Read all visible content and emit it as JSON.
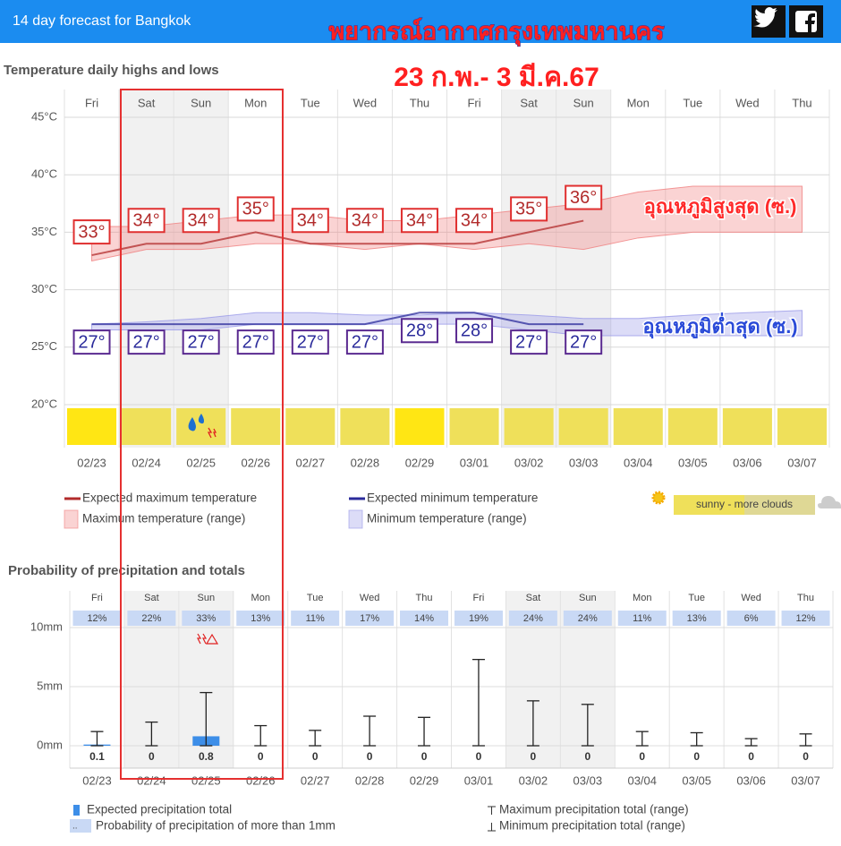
{
  "header": {
    "title": "14 day forecast for Bangkok"
  },
  "overlay": {
    "title": "พยากรณ์อากาศกรุงเทพมหานคร",
    "subtitle": "23 ก.พ.- 3 มี.ค.67",
    "max_label": "อุณหภูมิสูงสุด (ซ.)",
    "min_label": "อุณหภูมิต่ำสุด (ซ.)"
  },
  "chart_data": [
    {
      "type": "line",
      "title": "Temperature daily highs and lows",
      "categories": [
        "Fri",
        "Sat",
        "Sun",
        "Mon",
        "Tue",
        "Wed",
        "Thu",
        "Fri",
        "Sat",
        "Sun",
        "Mon",
        "Tue",
        "Wed",
        "Thu"
      ],
      "dates": [
        "02/23",
        "02/24",
        "02/25",
        "02/26",
        "02/27",
        "02/28",
        "02/29",
        "03/01",
        "03/02",
        "03/03",
        "03/04",
        "03/05",
        "03/06",
        "03/07"
      ],
      "ylim": [
        16,
        45
      ],
      "yticks": [
        {
          "value": 20,
          "label": "20°C"
        },
        {
          "value": 25,
          "label": "25°C"
        },
        {
          "value": 30,
          "label": "30°C"
        },
        {
          "value": 35,
          "label": "35°C"
        },
        {
          "value": 40,
          "label": "40°C"
        },
        {
          "value": 45,
          "label": "45°C"
        }
      ],
      "grid": true,
      "series": [
        {
          "name": "Expected maximum temperature",
          "color": "#b22b2b",
          "values": [
            33,
            34,
            34,
            35,
            34,
            34,
            34,
            34,
            35,
            36,
            null,
            null,
            null,
            null
          ],
          "value_labels": [
            "33°",
            "34°",
            "34°",
            "35°",
            "34°",
            "34°",
            "34°",
            "34°",
            "35°",
            "36°",
            null,
            null,
            null,
            null
          ]
        },
        {
          "name": "Expected minimum temperature",
          "color": "#2b2b9b",
          "values": [
            27,
            27,
            27,
            27,
            27,
            27,
            28,
            28,
            27,
            27,
            null,
            null,
            null,
            null
          ],
          "value_labels": [
            "27°",
            "27°",
            "27°",
            "27°",
            "27°",
            "27°",
            "28°",
            "28°",
            "27°",
            "27°",
            null,
            null,
            null,
            null
          ]
        },
        {
          "name": "Maximum temperature (range)",
          "color": "#f08080",
          "low": [
            32.5,
            33.5,
            33.5,
            34,
            34,
            33.5,
            34,
            33.5,
            34,
            33.5,
            34.5,
            35,
            35,
            35
          ],
          "high": [
            35.5,
            35.5,
            36,
            36.5,
            36.5,
            36,
            36,
            36.5,
            37,
            37.5,
            38.5,
            39,
            39,
            39
          ]
        },
        {
          "name": "Minimum temperature (range)",
          "color": "#9a9ae8",
          "low": [
            26.5,
            26.5,
            26.5,
            27,
            27,
            27,
            27,
            27,
            26.5,
            26,
            26,
            26,
            26,
            26
          ],
          "high": [
            27,
            27.2,
            27.5,
            28,
            28,
            27.8,
            27.8,
            28,
            27.8,
            27.5,
            27.5,
            27.8,
            28,
            28.2
          ]
        }
      ],
      "weather_legend": "sunny - more clouds"
    },
    {
      "type": "bar",
      "title": "Probability of precipitation and totals",
      "categories": [
        "Fri",
        "Sat",
        "Sun",
        "Mon",
        "Tue",
        "Wed",
        "Thu",
        "Fri",
        "Sat",
        "Sun",
        "Mon",
        "Tue",
        "Wed",
        "Thu"
      ],
      "dates": [
        "02/23",
        "02/24",
        "02/25",
        "02/26",
        "02/27",
        "02/28",
        "02/29",
        "03/01",
        "03/02",
        "03/03",
        "03/04",
        "03/05",
        "03/06",
        "03/07"
      ],
      "ylim": [
        0,
        10
      ],
      "yticks": [
        {
          "value": 0,
          "label": "0mm"
        },
        {
          "value": 5,
          "label": "5mm"
        },
        {
          "value": 10,
          "label": "10mm"
        }
      ],
      "probability": {
        "name": "Probability of precipitation of more than 1mm",
        "values": [
          12,
          22,
          33,
          13,
          11,
          17,
          14,
          19,
          24,
          24,
          11,
          13,
          6,
          12
        ],
        "value_labels": [
          "12%",
          "22%",
          "33%",
          "13%",
          "11%",
          "17%",
          "14%",
          "19%",
          "24%",
          "24%",
          "11%",
          "13%",
          "6%",
          "12%"
        ]
      },
      "series": [
        {
          "name": "Expected precipitation total",
          "color": "#3d8ee8",
          "values": [
            0.1,
            0,
            0.8,
            0,
            0,
            0,
            0,
            0,
            0,
            0,
            0,
            0,
            0,
            0
          ]
        },
        {
          "name": "Maximum precipitation total (range)",
          "color": "#222222",
          "values": [
            1.2,
            2.0,
            4.5,
            1.7,
            1.3,
            2.5,
            2.4,
            7.3,
            3.8,
            3.5,
            1.2,
            1.1,
            0.6,
            1.0
          ]
        },
        {
          "name": "Minimum precipitation total (range)",
          "color": "#222222",
          "values": [
            0,
            0,
            0,
            0,
            0,
            0,
            0,
            0,
            0,
            0,
            0,
            0,
            0,
            0
          ]
        }
      ]
    }
  ]
}
